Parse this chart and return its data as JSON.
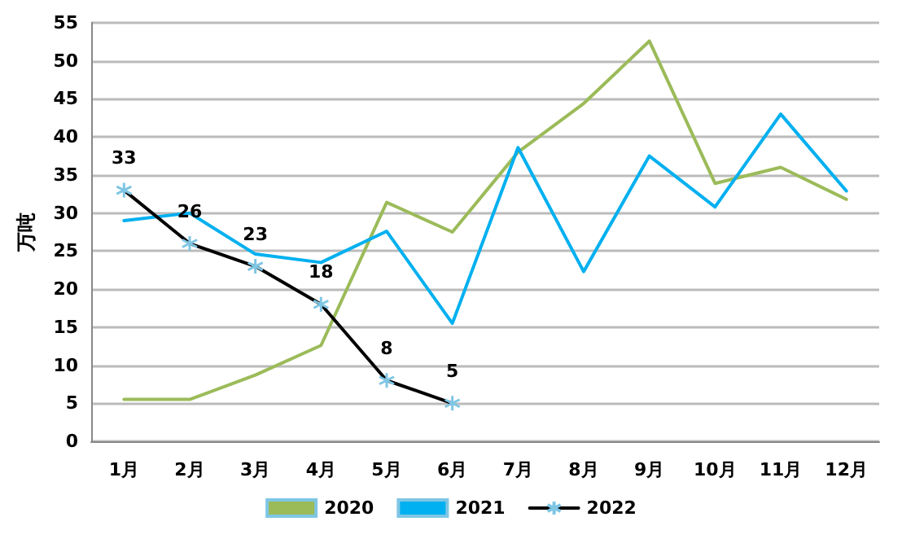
{
  "chart_data": {
    "type": "line",
    "ylabel": "万吨",
    "categories": [
      "1月",
      "2月",
      "3月",
      "4月",
      "5月",
      "6月",
      "7月",
      "8月",
      "9月",
      "10月",
      "11月",
      "12月"
    ],
    "series": [
      {
        "name": "2020",
        "color": "#9bbb59",
        "values": [
          5.5,
          5.5,
          8.7,
          12.6,
          31.4,
          27.5,
          38,
          44.4,
          52.6,
          33.9,
          36,
          31.8
        ]
      },
      {
        "name": "2021",
        "color": "#00b0f0",
        "values": [
          29,
          30,
          24.6,
          23.5,
          27.6,
          15.5,
          38.6,
          22.3,
          37.5,
          30.8,
          43,
          32.9
        ]
      },
      {
        "name": "2022",
        "color": "#000000",
        "marker": "cross",
        "data_labels": true,
        "values": [
          33,
          26,
          23,
          18,
          8,
          5,
          null,
          null,
          null,
          null,
          null,
          null
        ]
      }
    ],
    "ylim": [
      0,
      55
    ],
    "yticks": [
      0,
      5,
      10,
      15,
      20,
      25,
      30,
      35,
      40,
      45,
      50,
      55
    ],
    "grid": "y",
    "legend": "bottom",
    "marker": "none",
    "line_style": "solid"
  }
}
